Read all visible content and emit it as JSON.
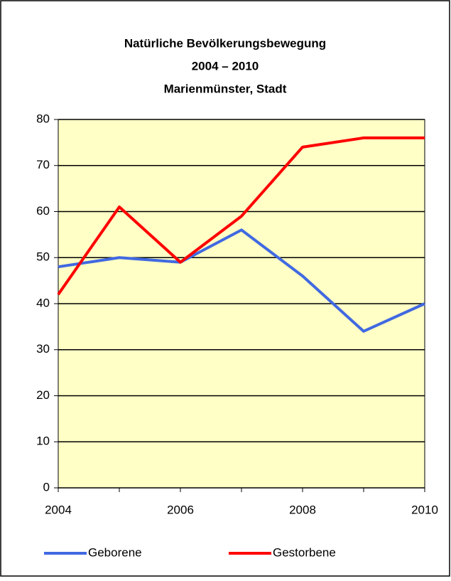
{
  "chart_data": {
    "type": "line",
    "title": [
      "Natürliche Bevölkerungsbewegung",
      "2004 – 2010",
      "Marienmünster, Stadt"
    ],
    "x": [
      2004,
      2005,
      2006,
      2007,
      2008,
      2009,
      2010
    ],
    "series": [
      {
        "name": "Geborene",
        "color": "#4169e1",
        "values": [
          48,
          50,
          49,
          56,
          46,
          34,
          40
        ]
      },
      {
        "name": "Gestorbene",
        "color": "#ff0000",
        "values": [
          42,
          61,
          49,
          59,
          74,
          76,
          76
        ]
      }
    ],
    "xlim": [
      2004,
      2010
    ],
    "xticks": [
      2004,
      2006,
      2008,
      2010
    ],
    "ylim": [
      0,
      80
    ],
    "yticks": [
      0,
      10,
      20,
      30,
      40,
      50,
      60,
      70,
      80
    ],
    "grid": true,
    "legend": "bottom",
    "plot_background": "#ffffc6"
  }
}
